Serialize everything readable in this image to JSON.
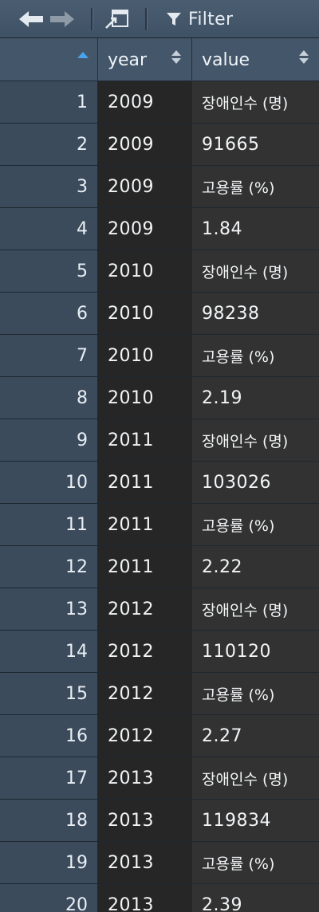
{
  "toolbar": {
    "filter_label": "Filter",
    "icons": [
      "back-arrow-icon",
      "forward-arrow-icon",
      "popout-icon",
      "filter-icon"
    ]
  },
  "table": {
    "columns": [
      "",
      "year",
      "value"
    ],
    "rows": [
      {
        "index": "1",
        "year": "2009",
        "value": "장애인수 (명)"
      },
      {
        "index": "2",
        "year": "2009",
        "value": "91665"
      },
      {
        "index": "3",
        "year": "2009",
        "value": "고용률 (%)"
      },
      {
        "index": "4",
        "year": "2009",
        "value": "1.84"
      },
      {
        "index": "5",
        "year": "2010",
        "value": "장애인수 (명)"
      },
      {
        "index": "6",
        "year": "2010",
        "value": "98238"
      },
      {
        "index": "7",
        "year": "2010",
        "value": "고용률 (%)"
      },
      {
        "index": "8",
        "year": "2010",
        "value": "2.19"
      },
      {
        "index": "9",
        "year": "2011",
        "value": "장애인수 (명)"
      },
      {
        "index": "10",
        "year": "2011",
        "value": "103026"
      },
      {
        "index": "11",
        "year": "2011",
        "value": "고용률 (%)"
      },
      {
        "index": "12",
        "year": "2011",
        "value": "2.22"
      },
      {
        "index": "13",
        "year": "2012",
        "value": "장애인수 (명)"
      },
      {
        "index": "14",
        "year": "2012",
        "value": "110120"
      },
      {
        "index": "15",
        "year": "2012",
        "value": "고용률 (%)"
      },
      {
        "index": "16",
        "year": "2012",
        "value": "2.27"
      },
      {
        "index": "17",
        "year": "2013",
        "value": "장애인수 (명)"
      },
      {
        "index": "18",
        "year": "2013",
        "value": "119834"
      },
      {
        "index": "19",
        "year": "2013",
        "value": "고용률 (%)"
      },
      {
        "index": "20",
        "year": "2013",
        "value": "2.39"
      }
    ]
  }
}
